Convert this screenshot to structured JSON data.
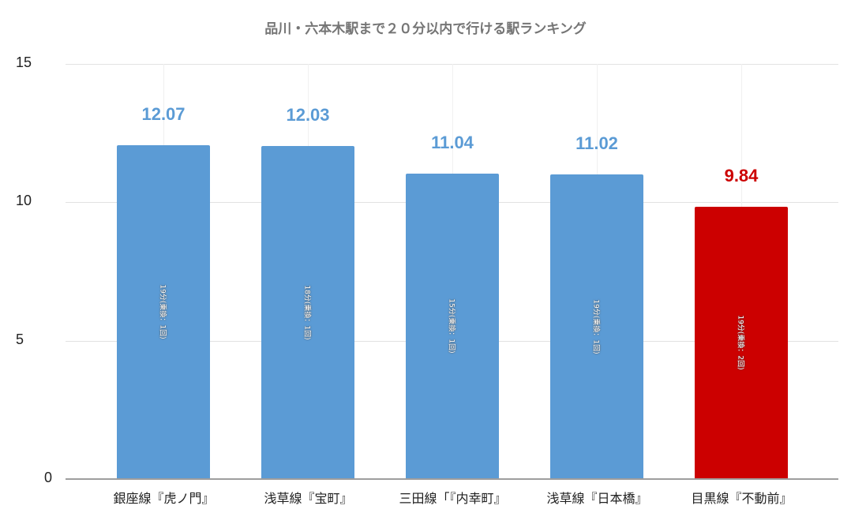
{
  "chart_data": {
    "type": "bar",
    "title": "品川・六本木駅まで２０分以内で行ける駅ランキング",
    "categories": [
      "銀座線『虎ノ門』",
      "浅草線『宝町』",
      "三田線「『内幸町』",
      "浅草線『日本橋』",
      "目黒線『不動前』"
    ],
    "values": [
      12.07,
      12.03,
      11.04,
      11.02,
      9.84
    ],
    "value_labels": [
      "12.07",
      "12.03",
      "11.04",
      "11.02",
      "9.84"
    ],
    "bar_annotations": [
      "19分(乗換：1回)",
      "18分(乗換：1回)",
      "15分(乗換：1回)",
      "19分(乗換：1回)",
      "19分(乗換：2回)"
    ],
    "bar_colors": [
      "#5b9bd5",
      "#5b9bd5",
      "#5b9bd5",
      "#5b9bd5",
      "#cc0000"
    ],
    "label_colors": [
      "#5b9bd5",
      "#5b9bd5",
      "#5b9bd5",
      "#5b9bd5",
      "#cc0000"
    ],
    "xlabel": "",
    "ylabel": "",
    "ylim": [
      0,
      15
    ],
    "yticks": [
      "0",
      "5",
      "10",
      "15"
    ],
    "grid": true,
    "legend": "none"
  }
}
